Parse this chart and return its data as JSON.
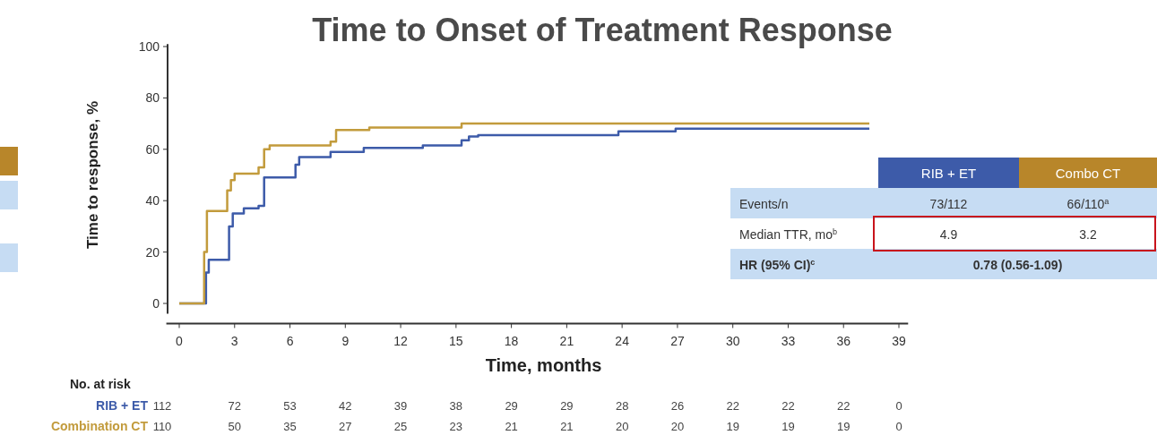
{
  "chart_data": {
    "type": "step",
    "title": "Time to Onset of Treatment Response",
    "xlabel": "Time, months",
    "ylabel": "Time to response, %",
    "xlim": [
      -0.7,
      39.5
    ],
    "ylim": [
      -4,
      101
    ],
    "xticks": [
      0,
      3,
      6,
      9,
      12,
      15,
      18,
      21,
      24,
      27,
      30,
      33,
      36,
      39
    ],
    "yticks": [
      0,
      20,
      40,
      60,
      80,
      100
    ],
    "series": [
      {
        "name": "RIB + ET",
        "color": "#3d5ba9",
        "x": [
          0,
          1.45,
          1.6,
          2.7,
          2.9,
          3.5,
          4.3,
          4.6,
          6.3,
          6.5,
          8.2,
          10.0,
          13.2,
          15.3,
          15.7,
          16.2,
          23.8,
          26.9,
          37.4
        ],
        "values": [
          0,
          12,
          17,
          30,
          35,
          37,
          38,
          49,
          54,
          57,
          59,
          60.5,
          61.5,
          63.5,
          65,
          65.5,
          67,
          68,
          68
        ]
      },
      {
        "name": "Combination CT",
        "color": "#c29b3c",
        "x": [
          0,
          1.35,
          1.5,
          2.6,
          2.8,
          3.0,
          4.3,
          4.6,
          4.9,
          8.2,
          8.5,
          10.3,
          15.3,
          37.4
        ],
        "values": [
          0,
          20,
          36,
          44,
          48,
          50.5,
          53,
          60,
          61.5,
          63,
          67.5,
          68.5,
          70,
          70
        ]
      }
    ],
    "annotations": [
      "RIB + ET",
      "Combo CT",
      "Events/n",
      "73/112",
      "66/110$^{a}$",
      "Median TTR, mo$^{b}$",
      "4.9",
      "3.2",
      "HR (95% CI)$^{c}$",
      "0.78 (0.56-1.09)",
      "No. at risk",
      "112",
      "72",
      "53",
      "42",
      "39",
      "38",
      "29",
      "29",
      "28",
      "26",
      "22",
      "22",
      "22",
      "0",
      "110",
      "50",
      "35",
      "27",
      "25",
      "23",
      "21",
      "21",
      "20",
      "20",
      "19",
      "19",
      "19",
      "0"
    ]
  }
}
